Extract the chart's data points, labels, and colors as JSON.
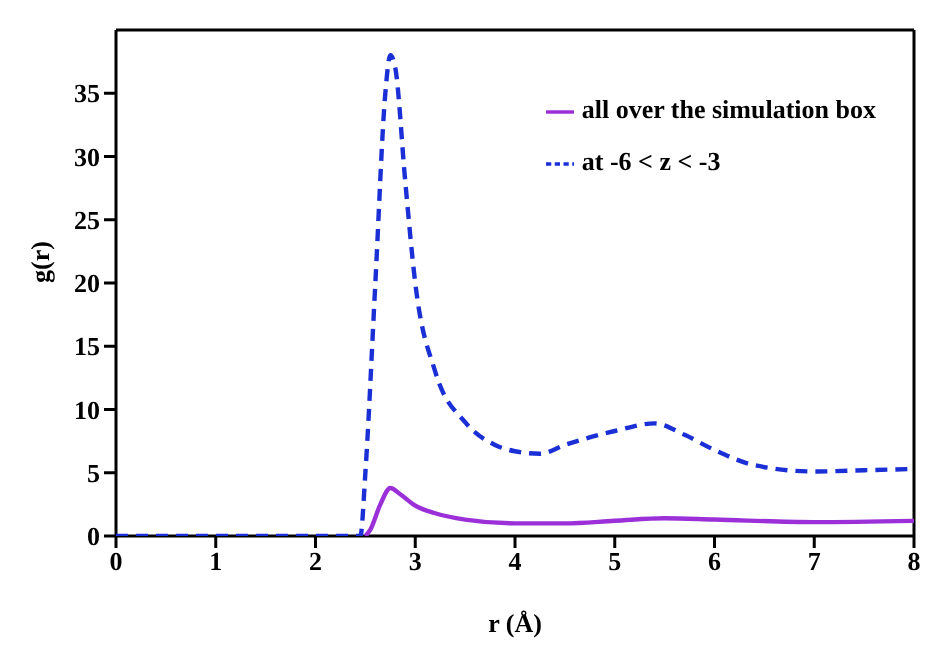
{
  "chart_data": {
    "type": "line",
    "xlabel": "r (Å)",
    "ylabel": "g(r)",
    "xlim": [
      0,
      8
    ],
    "xticks": [
      0,
      1,
      2,
      3,
      4,
      5,
      6,
      7,
      8
    ],
    "ylim": [
      0,
      40
    ],
    "yticks": [
      0,
      5,
      10,
      15,
      20,
      25,
      30,
      35
    ],
    "grid": false,
    "legend": "top right",
    "marker": "none",
    "series": [
      {
        "name": "all over the simulation box",
        "color": "#9b30d9",
        "line_style": "solid",
        "x": [
          2.5,
          2.55,
          2.65,
          2.75,
          2.85,
          3.0,
          3.2,
          3.5,
          4.0,
          4.5,
          5.0,
          5.5,
          6.0,
          7.0,
          8.0
        ],
        "values": [
          0,
          0.5,
          2.5,
          3.8,
          3.3,
          2.4,
          1.8,
          1.3,
          1.0,
          1.0,
          1.2,
          1.4,
          1.3,
          1.1,
          1.2
        ]
      },
      {
        "name": "at -6 < z < -3",
        "color": "#1a2fd6",
        "line_style": "dashed",
        "x": [
          0,
          1,
          2,
          2.45,
          2.5,
          2.6,
          2.7,
          2.75,
          2.8,
          2.9,
          3.0,
          3.2,
          3.5,
          3.8,
          4.0,
          4.25,
          4.5,
          5.0,
          5.4,
          5.7,
          6.0,
          6.4,
          7.0,
          7.5,
          8.0
        ],
        "values": [
          0,
          0,
          0,
          0,
          5,
          20,
          35,
          38,
          37,
          28,
          20,
          13,
          9,
          7.2,
          6.7,
          6.5,
          7.2,
          8.3,
          8.9,
          8,
          6.8,
          5.6,
          5.1,
          5.2,
          5.3
        ]
      }
    ]
  }
}
